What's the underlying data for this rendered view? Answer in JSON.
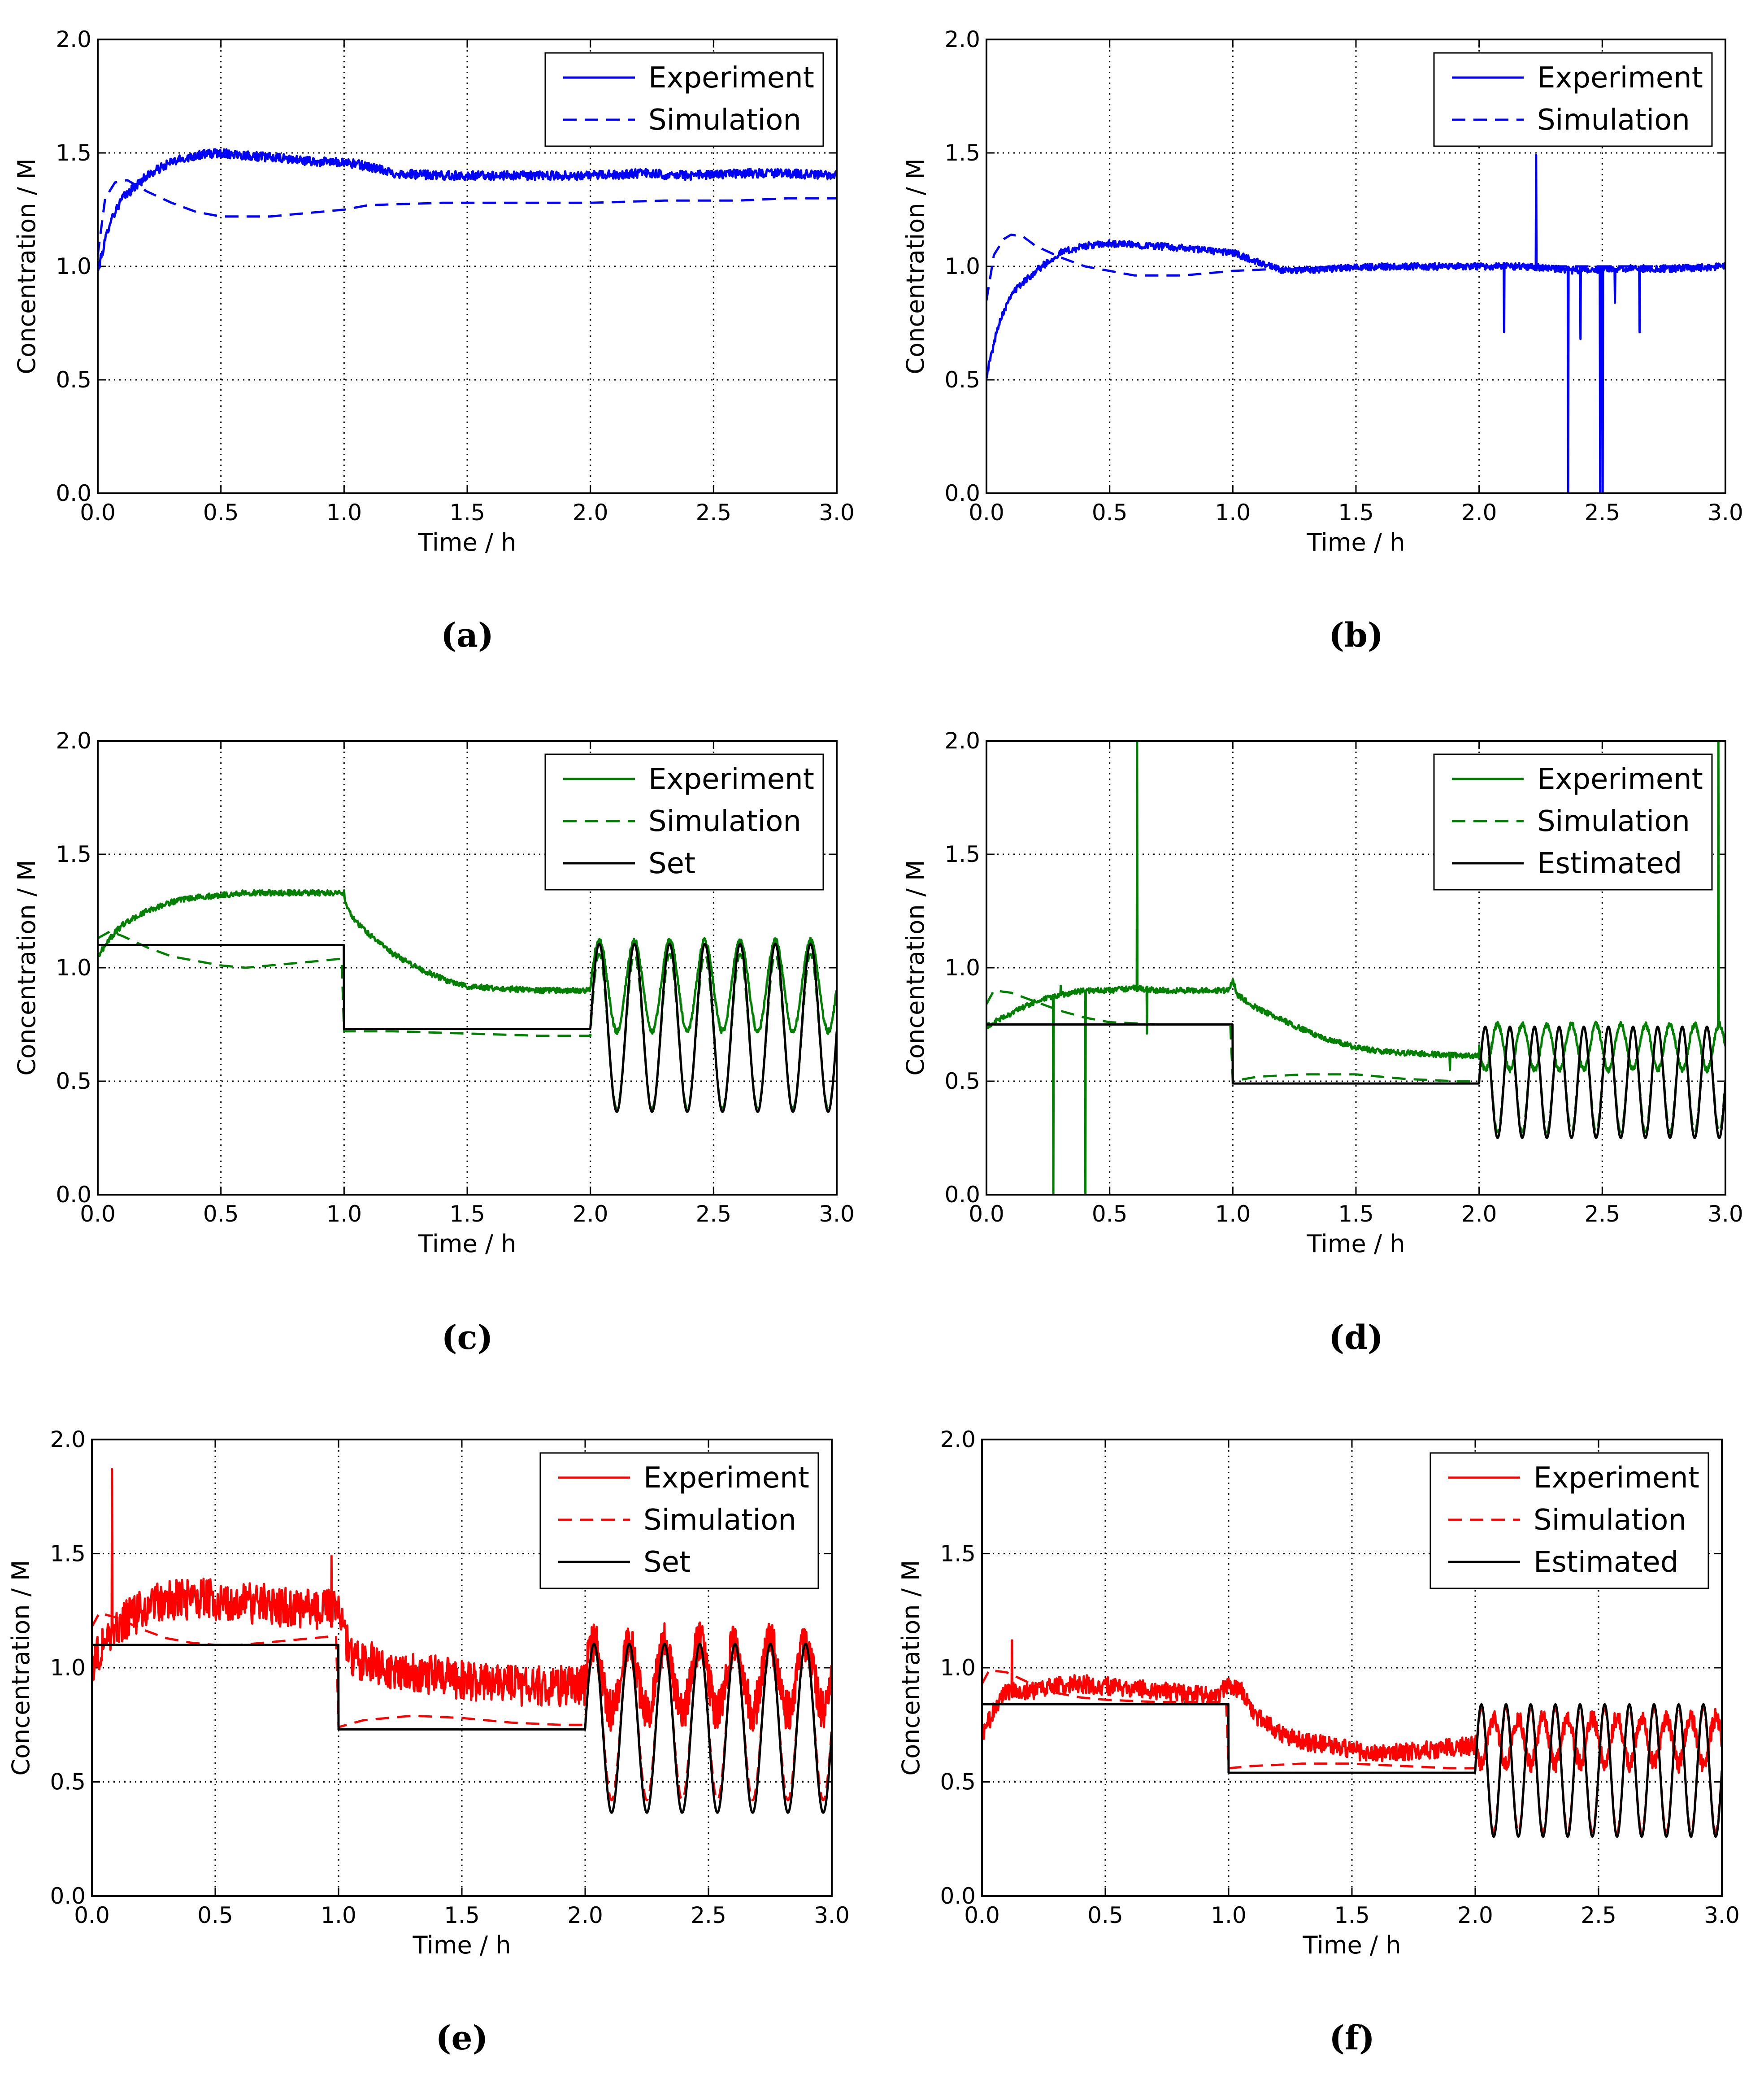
{
  "figure": {
    "caption_labels": [
      "(a)",
      "(b)",
      "(c)",
      "(d)",
      "(e)",
      "(f)"
    ]
  },
  "chart_data": [
    {
      "panel": "(a)",
      "type": "line",
      "xlabel": "Time / h",
      "ylabel": "Concentration / M",
      "xlim": [
        0,
        3
      ],
      "ylim": [
        0,
        2
      ],
      "xticks": [
        "0.0",
        "0.5",
        "1.0",
        "1.5",
        "2.0",
        "2.5",
        "3.0"
      ],
      "yticks": [
        "0.0",
        "0.5",
        "1.0",
        "1.5",
        "2.0"
      ],
      "grid": true,
      "legend_position": "top-right",
      "series": [
        {
          "name": "Experiment",
          "color": "#0000ff",
          "style": "solid",
          "noise": 0.02,
          "x": [
            0,
            0.05,
            0.1,
            0.2,
            0.3,
            0.4,
            0.5,
            0.6,
            0.7,
            0.8,
            0.9,
            1.0,
            1.1,
            1.2,
            1.4,
            1.6,
            1.8,
            2.0,
            2.2,
            2.4,
            2.6,
            2.8,
            3.0
          ],
          "y": [
            0.98,
            1.2,
            1.3,
            1.4,
            1.46,
            1.49,
            1.5,
            1.49,
            1.48,
            1.47,
            1.46,
            1.46,
            1.44,
            1.41,
            1.4,
            1.4,
            1.4,
            1.4,
            1.41,
            1.4,
            1.41,
            1.41,
            1.4
          ]
        },
        {
          "name": "Simulation",
          "color": "#0000ff",
          "style": "dashed",
          "x": [
            0,
            0.03,
            0.07,
            0.12,
            0.2,
            0.3,
            0.4,
            0.5,
            0.6,
            0.7,
            0.8,
            0.9,
            1.0,
            1.1,
            1.4,
            1.7,
            2.0,
            2.3,
            2.6,
            2.8,
            3.0
          ],
          "y": [
            1.05,
            1.3,
            1.37,
            1.38,
            1.33,
            1.28,
            1.24,
            1.22,
            1.22,
            1.22,
            1.23,
            1.24,
            1.25,
            1.27,
            1.28,
            1.28,
            1.28,
            1.29,
            1.29,
            1.3,
            1.3
          ]
        }
      ]
    },
    {
      "panel": "(b)",
      "type": "line",
      "xlabel": "Time / h",
      "ylabel": "Concentration / M",
      "xlim": [
        0,
        3
      ],
      "ylim": [
        0,
        2
      ],
      "xticks": [
        "0.0",
        "0.5",
        "1.0",
        "1.5",
        "2.0",
        "2.5",
        "3.0"
      ],
      "yticks": [
        "0.0",
        "0.5",
        "1.0",
        "1.5",
        "2.0"
      ],
      "grid": true,
      "legend_position": "top-right",
      "series": [
        {
          "name": "Experiment",
          "color": "#0000ff",
          "style": "solid",
          "noise": 0.015,
          "x": [
            0,
            0.05,
            0.1,
            0.2,
            0.3,
            0.4,
            0.5,
            0.7,
            0.9,
            1.0,
            1.1,
            1.2,
            1.4,
            1.6,
            1.8,
            2.0,
            2.2,
            2.4,
            2.6,
            2.8,
            3.0
          ],
          "y": [
            0.52,
            0.75,
            0.88,
            0.98,
            1.06,
            1.09,
            1.1,
            1.09,
            1.07,
            1.06,
            1.02,
            0.98,
            0.99,
            1.0,
            1.0,
            1.0,
            1.0,
            0.98,
            0.99,
            0.99,
            1.0
          ],
          "spikes": [
            [
              2.1,
              0.71
            ],
            [
              2.23,
              1.49
            ],
            [
              2.36,
              0.0
            ],
            [
              2.41,
              0.68
            ],
            [
              2.49,
              0.0
            ],
            [
              2.5,
              0.0
            ],
            [
              2.55,
              0.84
            ],
            [
              2.65,
              0.71
            ]
          ]
        },
        {
          "name": "Simulation",
          "color": "#0000ff",
          "style": "dashed",
          "x": [
            0,
            0.03,
            0.07,
            0.1,
            0.15,
            0.2,
            0.3,
            0.4,
            0.5,
            0.6,
            0.7,
            0.8,
            0.9,
            1.0,
            1.2,
            1.5,
            2.0,
            2.5,
            3.0
          ],
          "y": [
            0.85,
            1.05,
            1.12,
            1.14,
            1.13,
            1.09,
            1.04,
            1.0,
            0.98,
            0.96,
            0.96,
            0.96,
            0.97,
            0.98,
            0.99,
            1.0,
            1.0,
            1.0,
            1.0
          ]
        }
      ]
    },
    {
      "panel": "(c)",
      "type": "line",
      "xlabel": "Time / h",
      "ylabel": "Concentration / M",
      "xlim": [
        0,
        3
      ],
      "ylim": [
        0,
        2
      ],
      "xticks": [
        "0.0",
        "0.5",
        "1.0",
        "1.5",
        "2.0",
        "2.5",
        "3.0"
      ],
      "yticks": [
        "0.0",
        "0.5",
        "1.0",
        "1.5",
        "2.0"
      ],
      "grid": true,
      "legend_position": "top-right",
      "series": [
        {
          "name": "Experiment",
          "color": "#008000",
          "style": "solid",
          "noise": 0.012,
          "x": [
            0,
            0.05,
            0.1,
            0.2,
            0.3,
            0.4,
            0.5,
            0.6,
            0.7,
            0.8,
            0.9,
            1.0,
            1.01,
            1.05,
            1.1,
            1.2,
            1.3,
            1.4,
            1.5,
            1.6,
            1.8,
            2.0
          ],
          "y": [
            1.05,
            1.13,
            1.19,
            1.25,
            1.29,
            1.31,
            1.32,
            1.33,
            1.33,
            1.33,
            1.33,
            1.33,
            1.27,
            1.2,
            1.15,
            1.06,
            1.0,
            0.95,
            0.92,
            0.91,
            0.9,
            0.9
          ],
          "osc": {
            "x0": 2.0,
            "x1": 3.0,
            "mid": 0.92,
            "amp": 0.2,
            "period": 0.143,
            "phase": 0.0
          }
        },
        {
          "name": "Simulation",
          "color": "#008000",
          "style": "dashed",
          "x": [
            0,
            0.05,
            0.1,
            0.2,
            0.3,
            0.4,
            0.5,
            0.6,
            0.7,
            0.8,
            0.9,
            0.99,
            1.0,
            1.05,
            1.2,
            1.5,
            1.8,
            2.0
          ],
          "y": [
            1.13,
            1.16,
            1.14,
            1.09,
            1.05,
            1.03,
            1.01,
            1.0,
            1.01,
            1.02,
            1.03,
            1.04,
            0.72,
            0.72,
            0.72,
            0.71,
            0.7,
            0.7
          ],
          "osc": {
            "x0": 2.0,
            "x1": 3.0,
            "mid": 0.72,
            "amp": 0.34,
            "period": 0.143,
            "phase": 0.0
          }
        },
        {
          "name": "Set",
          "color": "#000000",
          "style": "solid",
          "x": [
            0,
            0.999,
            1.0,
            1.999
          ],
          "y": [
            1.1,
            1.1,
            0.73,
            0.73
          ],
          "osc": {
            "x0": 2.0,
            "x1": 3.0,
            "mid": 0.735,
            "amp": 0.37,
            "period": 0.143,
            "phase": 0.0
          }
        }
      ]
    },
    {
      "panel": "(d)",
      "type": "line",
      "xlabel": "Time / h",
      "ylabel": "Concentration / M",
      "xlim": [
        0,
        3
      ],
      "ylim": [
        0,
        2
      ],
      "xticks": [
        "0.0",
        "0.5",
        "1.0",
        "1.5",
        "2.0",
        "2.5",
        "3.0"
      ],
      "yticks": [
        "0.0",
        "0.5",
        "1.0",
        "1.5",
        "2.0"
      ],
      "grid": true,
      "legend_position": "top-right",
      "series": [
        {
          "name": "Experiment",
          "color": "#008000",
          "style": "solid",
          "noise": 0.012,
          "x": [
            0,
            0.05,
            0.1,
            0.2,
            0.3,
            0.4,
            0.5,
            0.6,
            0.7,
            0.8,
            0.9,
            0.98,
            1.0,
            1.02,
            1.1,
            1.2,
            1.3,
            1.4,
            1.5,
            1.6,
            1.8,
            2.0
          ],
          "y": [
            0.74,
            0.77,
            0.8,
            0.85,
            0.88,
            0.9,
            0.9,
            0.91,
            0.9,
            0.9,
            0.9,
            0.9,
            0.94,
            0.88,
            0.82,
            0.77,
            0.72,
            0.68,
            0.65,
            0.63,
            0.62,
            0.61
          ],
          "spikes": [
            [
              0.27,
              0.0
            ],
            [
              0.3,
              0.92
            ],
            [
              0.4,
              0.0
            ],
            [
              0.61,
              2.0
            ],
            [
              0.65,
              0.71
            ],
            [
              1.88,
              0.55
            ],
            [
              2.97,
              2.0
            ]
          ],
          "osc": {
            "x0": 2.0,
            "x1": 3.0,
            "mid": 0.65,
            "amp": 0.1,
            "period": 0.1,
            "phase": 0.05
          }
        },
        {
          "name": "Simulation",
          "color": "#008000",
          "style": "dashed",
          "x": [
            0,
            0.03,
            0.1,
            0.2,
            0.3,
            0.4,
            0.5,
            0.7,
            0.9,
            0.99,
            1.0,
            1.1,
            1.3,
            1.5,
            1.7,
            1.9,
            2.0
          ],
          "y": [
            0.84,
            0.9,
            0.89,
            0.85,
            0.81,
            0.78,
            0.76,
            0.75,
            0.75,
            0.75,
            0.5,
            0.52,
            0.53,
            0.53,
            0.51,
            0.5,
            0.5
          ],
          "osc": {
            "x0": 2.0,
            "x1": 3.0,
            "mid": 0.505,
            "amp": 0.23,
            "period": 0.1,
            "phase": 0.0
          }
        },
        {
          "name": "Estimated",
          "color": "#000000",
          "style": "solid",
          "x": [
            0,
            0.999,
            1.0,
            1.999
          ],
          "y": [
            0.75,
            0.75,
            0.49,
            0.49
          ],
          "osc": {
            "x0": 2.0,
            "x1": 3.0,
            "mid": 0.495,
            "amp": 0.245,
            "period": 0.1,
            "phase": 0.0
          }
        }
      ]
    },
    {
      "panel": "(e)",
      "type": "line",
      "xlabel": "Time / h",
      "ylabel": "Concentration / M",
      "xlim": [
        0,
        3
      ],
      "ylim": [
        0,
        2
      ],
      "xticks": [
        "0.0",
        "0.5",
        "1.0",
        "1.5",
        "2.0",
        "2.5",
        "3.0"
      ],
      "yticks": [
        "0.0",
        "0.5",
        "1.0",
        "1.5",
        "2.0"
      ],
      "grid": true,
      "legend_position": "top-right",
      "series": [
        {
          "name": "Experiment",
          "color": "#ff0000",
          "style": "solid",
          "noise": 0.09,
          "x": [
            0,
            0.05,
            0.1,
            0.2,
            0.3,
            0.4,
            0.5,
            0.6,
            0.7,
            0.8,
            0.9,
            1.0,
            1.05,
            1.2,
            1.4,
            1.6,
            1.8,
            2.0
          ],
          "y": [
            1.0,
            1.12,
            1.18,
            1.25,
            1.3,
            1.3,
            1.3,
            1.28,
            1.28,
            1.26,
            1.26,
            1.25,
            1.05,
            1.0,
            0.97,
            0.93,
            0.92,
            0.92
          ],
          "spikes": [
            [
              0.08,
              1.87
            ],
            [
              0.97,
              1.49
            ],
            [
              0.98,
              1.3
            ]
          ],
          "osc": {
            "x0": 2.0,
            "x1": 3.0,
            "mid": 0.96,
            "amp": 0.15,
            "period": 0.143,
            "phase": 0.0
          }
        },
        {
          "name": "Simulation",
          "color": "#ff0000",
          "style": "dashed",
          "x": [
            0,
            0.03,
            0.1,
            0.2,
            0.3,
            0.4,
            0.5,
            0.6,
            0.7,
            0.8,
            0.9,
            0.99,
            1.0,
            1.1,
            1.3,
            1.5,
            1.7,
            1.9,
            2.0
          ],
          "y": [
            1.18,
            1.24,
            1.22,
            1.17,
            1.13,
            1.11,
            1.1,
            1.1,
            1.11,
            1.12,
            1.13,
            1.14,
            0.74,
            0.77,
            0.79,
            0.78,
            0.76,
            0.75,
            0.75
          ],
          "osc": {
            "x0": 2.0,
            "x1": 3.0,
            "mid": 0.75,
            "amp": 0.33,
            "period": 0.143,
            "phase": 0.0
          }
        },
        {
          "name": "Set",
          "color": "#000000",
          "style": "solid",
          "x": [
            0,
            0.999,
            1.0,
            1.999
          ],
          "y": [
            1.1,
            1.1,
            0.73,
            0.73
          ],
          "osc": {
            "x0": 2.0,
            "x1": 3.0,
            "mid": 0.735,
            "amp": 0.37,
            "period": 0.143,
            "phase": 0.0
          }
        }
      ]
    },
    {
      "panel": "(f)",
      "type": "line",
      "xlabel": "Time / h",
      "ylabel": "Concentration / M",
      "xlim": [
        0,
        3
      ],
      "ylim": [
        0,
        2
      ],
      "xticks": [
        "0.0",
        "0.5",
        "1.0",
        "1.5",
        "2.0",
        "2.5",
        "3.0"
      ],
      "yticks": [
        "0.0",
        "0.5",
        "1.0",
        "1.5",
        "2.0"
      ],
      "grid": true,
      "legend_position": "top-right",
      "series": [
        {
          "name": "Experiment",
          "color": "#ff0000",
          "style": "solid",
          "noise": 0.04,
          "x": [
            0,
            0.05,
            0.1,
            0.2,
            0.3,
            0.4,
            0.5,
            0.6,
            0.7,
            0.8,
            0.9,
            0.95,
            1.0,
            1.05,
            1.1,
            1.2,
            1.3,
            1.4,
            1.5,
            1.6,
            1.8,
            2.0
          ],
          "y": [
            0.7,
            0.82,
            0.9,
            0.9,
            0.92,
            0.93,
            0.92,
            0.91,
            0.9,
            0.89,
            0.88,
            0.87,
            0.93,
            0.9,
            0.8,
            0.72,
            0.68,
            0.66,
            0.64,
            0.62,
            0.64,
            0.66
          ],
          "spikes": [
            [
              0.12,
              1.12
            ]
          ],
          "osc": {
            "x0": 2.0,
            "x1": 3.0,
            "mid": 0.68,
            "amp": 0.1,
            "period": 0.1,
            "phase": 0.05
          }
        },
        {
          "name": "Simulation",
          "color": "#ff0000",
          "style": "dashed",
          "x": [
            0,
            0.03,
            0.1,
            0.2,
            0.3,
            0.4,
            0.5,
            0.7,
            0.9,
            0.99,
            1.0,
            1.1,
            1.3,
            1.5,
            1.7,
            1.9,
            2.0
          ],
          "y": [
            0.93,
            0.99,
            0.98,
            0.93,
            0.89,
            0.87,
            0.86,
            0.85,
            0.85,
            0.85,
            0.56,
            0.57,
            0.58,
            0.58,
            0.57,
            0.56,
            0.56
          ],
          "osc": {
            "x0": 2.0,
            "x1": 3.0,
            "mid": 0.55,
            "amp": 0.27,
            "period": 0.1,
            "phase": 0.0
          }
        },
        {
          "name": "Estimated",
          "color": "#000000",
          "style": "solid",
          "x": [
            0,
            0.999,
            1.0,
            1.999
          ],
          "y": [
            0.84,
            0.84,
            0.54,
            0.54
          ],
          "osc": {
            "x0": 2.0,
            "x1": 3.0,
            "mid": 0.55,
            "amp": 0.29,
            "period": 0.1,
            "phase": 0.0
          }
        }
      ]
    }
  ]
}
